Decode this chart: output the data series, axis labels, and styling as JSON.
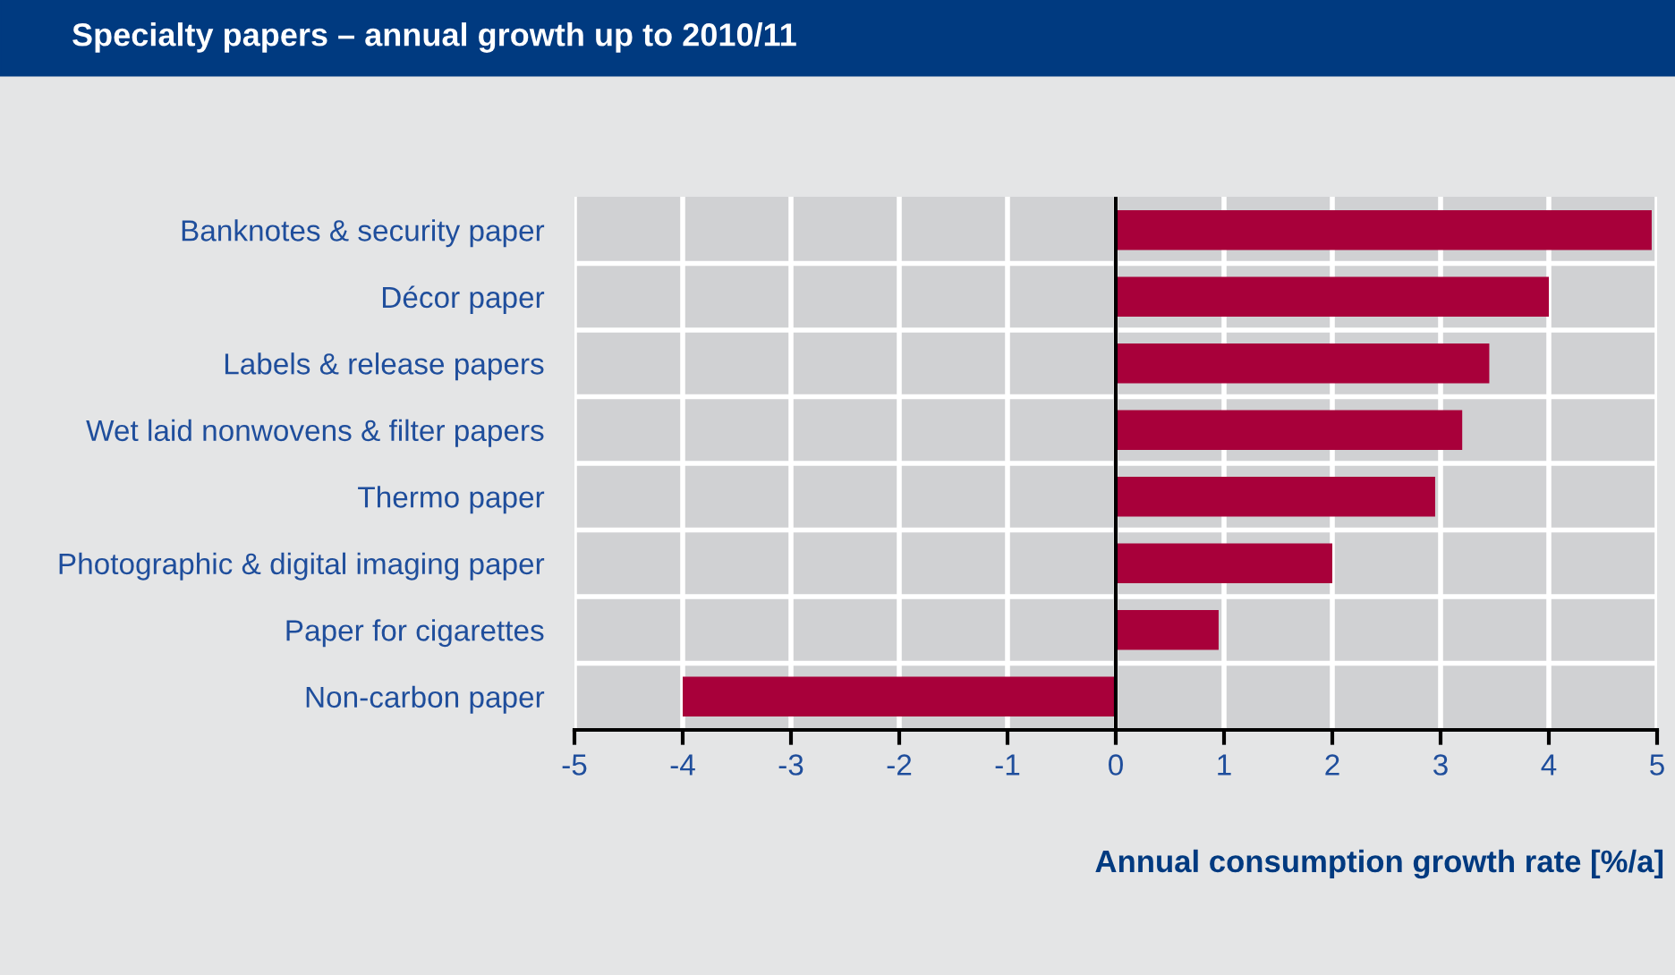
{
  "chart_data": {
    "type": "bar",
    "orientation": "horizontal",
    "title": "Specialty papers – annual growth up to 2010/11",
    "xlabel": "Annual consumption growth rate [%/a]",
    "categories": [
      "Banknotes & security paper",
      "Décor paper",
      "Labels & release papers",
      "Wet laid nonwovens & filter papers",
      "Thermo paper",
      "Photographic & digital imaging paper",
      "Paper for cigarettes",
      "Non-carbon paper"
    ],
    "values": [
      4.95,
      4.0,
      3.45,
      3.2,
      2.95,
      2.0,
      0.95,
      -4.0
    ],
    "color": "#a8003a",
    "xlim": [
      -5,
      5
    ],
    "xticks": [
      -5,
      -4,
      -3,
      -2,
      -1,
      0,
      1,
      2,
      3,
      4,
      5
    ],
    "grid": true,
    "ref_lines": [
      {
        "axis": "x",
        "value": 0,
        "color": "#000000"
      }
    ]
  }
}
